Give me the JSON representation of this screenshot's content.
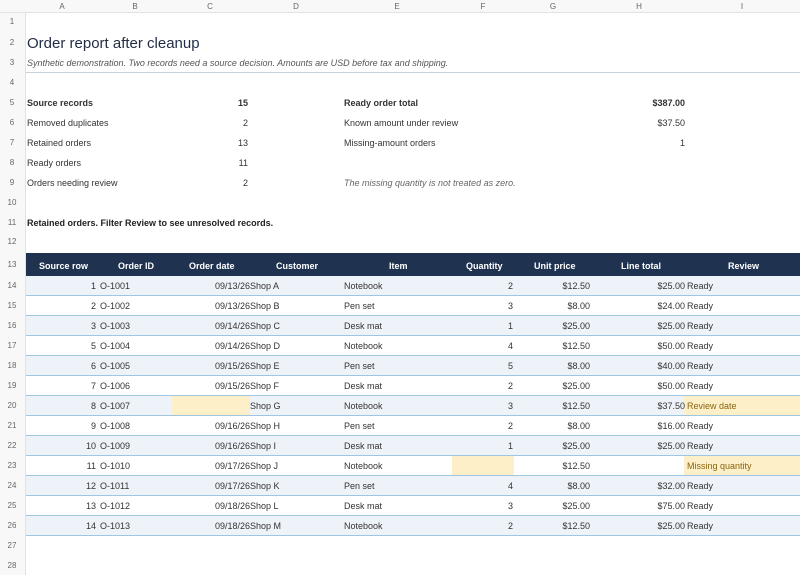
{
  "columns": [
    "A",
    "B",
    "C",
    "D",
    "E",
    "F",
    "G",
    "H",
    "I"
  ],
  "rows": [
    "1",
    "2",
    "3",
    "4",
    "5",
    "6",
    "7",
    "8",
    "9",
    "10",
    "11",
    "12",
    "13",
    "14",
    "15",
    "16",
    "17",
    "18",
    "19",
    "20",
    "21",
    "22",
    "23",
    "24",
    "25",
    "26",
    "27",
    "28"
  ],
  "report": {
    "title": "Order report after cleanup",
    "subtitle": "Synthetic demonstration. Two records need a source decision. Amounts are USD before tax and shipping."
  },
  "summary_left": [
    {
      "label": "Source records",
      "value": "15",
      "bold": true
    },
    {
      "label": "Removed duplicates",
      "value": "2"
    },
    {
      "label": "Retained orders",
      "value": "13"
    },
    {
      "label": "Ready orders",
      "value": "11"
    },
    {
      "label": "Orders needing review",
      "value": "2"
    }
  ],
  "summary_right": [
    {
      "label": "Ready order total",
      "value": "$387.00",
      "bold": true
    },
    {
      "label": "Known amount under review",
      "value": "$37.50"
    },
    {
      "label": "Missing-amount orders",
      "value": "1"
    }
  ],
  "note": "The missing quantity is not treated as zero.",
  "table_caption": "Retained orders. Filter Review to see unresolved records.",
  "table": {
    "headers": [
      "Source row",
      "Order ID",
      "Order date",
      "Customer",
      "Item",
      "Quantity",
      "Unit price",
      "Line total",
      "Review"
    ],
    "rows": [
      {
        "src": "1",
        "id": "O-1001",
        "date": "09/13/26",
        "cust": "Shop A",
        "item": "Notebook",
        "qty": "2",
        "price": "$12.50",
        "total": "$25.00",
        "review": "Ready"
      },
      {
        "src": "2",
        "id": "O-1002",
        "date": "09/13/26",
        "cust": "Shop B",
        "item": "Pen set",
        "qty": "3",
        "price": "$8.00",
        "total": "$24.00",
        "review": "Ready"
      },
      {
        "src": "3",
        "id": "O-1003",
        "date": "09/14/26",
        "cust": "Shop C",
        "item": "Desk mat",
        "qty": "1",
        "price": "$25.00",
        "total": "$25.00",
        "review": "Ready"
      },
      {
        "src": "5",
        "id": "O-1004",
        "date": "09/14/26",
        "cust": "Shop D",
        "item": "Notebook",
        "qty": "4",
        "price": "$12.50",
        "total": "$50.00",
        "review": "Ready"
      },
      {
        "src": "6",
        "id": "O-1005",
        "date": "09/15/26",
        "cust": "Shop E",
        "item": "Pen set",
        "qty": "5",
        "price": "$8.00",
        "total": "$40.00",
        "review": "Ready"
      },
      {
        "src": "7",
        "id": "O-1006",
        "date": "09/15/26",
        "cust": "Shop F",
        "item": "Desk mat",
        "qty": "2",
        "price": "$25.00",
        "total": "$50.00",
        "review": "Ready"
      },
      {
        "src": "8",
        "id": "O-1007",
        "date": "",
        "cust": "Shop G",
        "item": "Notebook",
        "qty": "3",
        "price": "$12.50",
        "total": "$37.50",
        "review": "Review date",
        "flag": "date"
      },
      {
        "src": "9",
        "id": "O-1008",
        "date": "09/16/26",
        "cust": "Shop H",
        "item": "Pen set",
        "qty": "2",
        "price": "$8.00",
        "total": "$16.00",
        "review": "Ready"
      },
      {
        "src": "10",
        "id": "O-1009",
        "date": "09/16/26",
        "cust": "Shop I",
        "item": "Desk mat",
        "qty": "1",
        "price": "$25.00",
        "total": "$25.00",
        "review": "Ready"
      },
      {
        "src": "11",
        "id": "O-1010",
        "date": "09/17/26",
        "cust": "Shop J",
        "item": "Notebook",
        "qty": "",
        "price": "$12.50",
        "total": "",
        "review": "Missing quantity",
        "flag": "qty"
      },
      {
        "src": "12",
        "id": "O-1011",
        "date": "09/17/26",
        "cust": "Shop K",
        "item": "Pen set",
        "qty": "4",
        "price": "$8.00",
        "total": "$32.00",
        "review": "Ready"
      },
      {
        "src": "13",
        "id": "O-1012",
        "date": "09/18/26",
        "cust": "Shop L",
        "item": "Desk mat",
        "qty": "3",
        "price": "$25.00",
        "total": "$75.00",
        "review": "Ready"
      },
      {
        "src": "14",
        "id": "O-1013",
        "date": "09/18/26",
        "cust": "Shop M",
        "item": "Notebook",
        "qty": "2",
        "price": "$12.50",
        "total": "$25.00",
        "review": "Ready"
      }
    ]
  },
  "colors": {
    "header_bg": "#1f3350",
    "flag_bg": "#fdf0c8",
    "row_alt": "#eef2f9"
  }
}
